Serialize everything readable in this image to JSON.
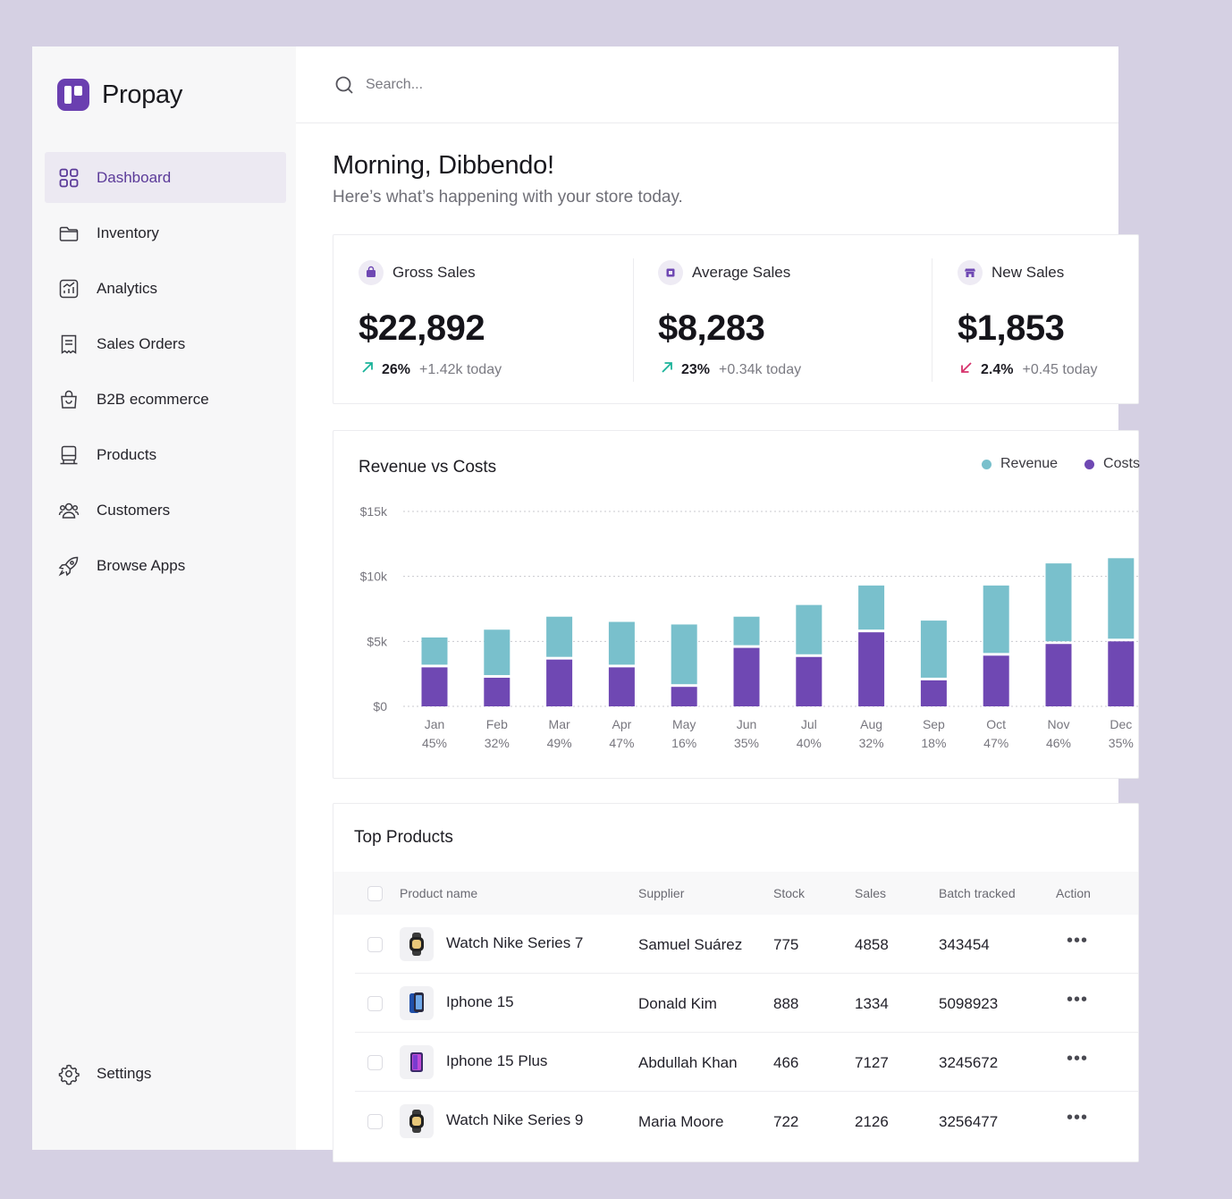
{
  "brand": {
    "name": "Propay",
    "accent": "#6a3fb0"
  },
  "sidebar": {
    "items": [
      {
        "label": "Dashboard",
        "icon": "grid-icon",
        "active": true
      },
      {
        "label": "Inventory",
        "icon": "folder-icon"
      },
      {
        "label": "Analytics",
        "icon": "analytics-icon"
      },
      {
        "label": "Sales Orders",
        "icon": "receipt-icon"
      },
      {
        "label": "B2B ecommerce",
        "icon": "shopping-bag-icon"
      },
      {
        "label": "Products",
        "icon": "box-icon"
      },
      {
        "label": "Customers",
        "icon": "users-icon"
      },
      {
        "label": "Browse Apps",
        "icon": "rocket-icon"
      }
    ],
    "settings_label": "Settings"
  },
  "search": {
    "placeholder": "Search..."
  },
  "header": {
    "greeting": "Morning, Dibbendo!",
    "subtitle": "Here’s what’s happening with your store today."
  },
  "stats": [
    {
      "title": "Gross Sales",
      "value": "$22,892",
      "pct": "26%",
      "today": "+1.42k today",
      "trend": "up"
    },
    {
      "title": "Average Sales",
      "value": "$8,283",
      "pct": "23%",
      "today": "+0.34k today",
      "trend": "up"
    },
    {
      "title": "New Sales",
      "value": "$1,853",
      "pct": "2.4%",
      "today": "+0.45 today",
      "trend": "down"
    }
  ],
  "colors": {
    "revenue": "#79c0cc",
    "costs": "#6f48b3",
    "up": "#1bb39a",
    "down": "#d6336c"
  },
  "chart_data": {
    "type": "bar",
    "title": "Revenue vs Costs",
    "legend": [
      "Revenue",
      "Costs"
    ],
    "categories": [
      "Jan",
      "Feb",
      "Mar",
      "Apr",
      "May",
      "Jun",
      "Jul",
      "Aug",
      "Sep",
      "Oct",
      "Nov",
      "Dec"
    ],
    "percent_labels": [
      "45%",
      "32%",
      "49%",
      "47%",
      "16%",
      "35%",
      "40%",
      "32%",
      "18%",
      "47%",
      "46%",
      "35%"
    ],
    "series": [
      {
        "name": "Costs",
        "values": [
          3000,
          2200,
          3600,
          3000,
          1500,
          4500,
          3800,
          5700,
          2000,
          3900,
          4800,
          5000
        ]
      },
      {
        "name": "Revenue",
        "values": [
          2300,
          3700,
          3300,
          3500,
          4800,
          2400,
          4000,
          3600,
          4600,
          5400,
          6200,
          6400
        ]
      }
    ],
    "stacked": true,
    "yticks": [
      "$0",
      "$5k",
      "$10k",
      "$15k"
    ],
    "ylim": [
      0,
      15000
    ],
    "grid": true,
    "legend_position": "top-right"
  },
  "products": {
    "title": "Top Products",
    "columns": [
      "Product name",
      "Supplier",
      "Stock",
      "Sales",
      "Batch tracked",
      "Action"
    ],
    "rows": [
      {
        "name": "Watch Nike Series 7",
        "supplier": "Samuel Suárez",
        "stock": "775",
        "sales": "4858",
        "batch": "343454",
        "thumb": "watch-icon"
      },
      {
        "name": "Iphone 15",
        "supplier": "Donald Kim",
        "stock": "888",
        "sales": "1334",
        "batch": "5098923",
        "thumb": "phone-icon"
      },
      {
        "name": "Iphone 15 Plus",
        "supplier": "Abdullah Khan",
        "stock": "466",
        "sales": "7127",
        "batch": "3245672",
        "thumb": "phone-icon"
      },
      {
        "name": "Watch Nike Series 9",
        "supplier": "Maria Moore",
        "stock": "722",
        "sales": "2126",
        "batch": "3256477",
        "thumb": "watch-icon"
      }
    ]
  }
}
